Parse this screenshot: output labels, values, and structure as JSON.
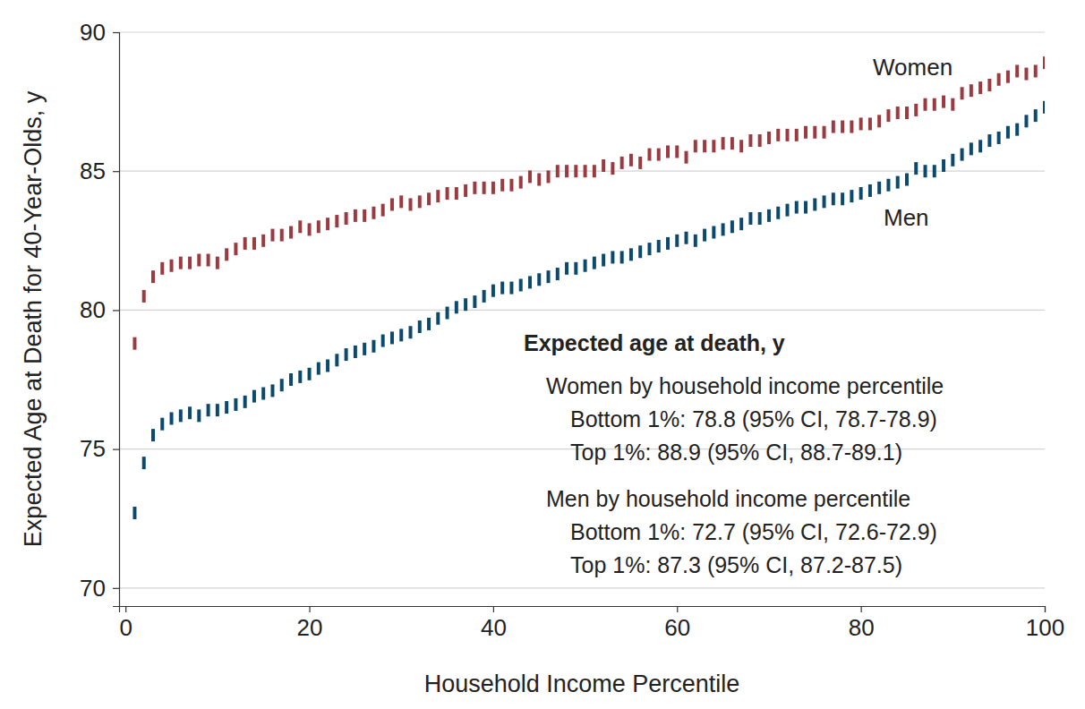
{
  "chart_data": {
    "type": "scatter",
    "x_label": "Household Income Percentile",
    "y_label": "Expected Age at Death for 40-Year-Olds, y",
    "xlim": [
      -0.7,
      100
    ],
    "ylim": [
      69.35,
      90
    ],
    "xticks": [
      0,
      20,
      40,
      60,
      80,
      100
    ],
    "yticks": [
      70,
      75,
      80,
      85,
      90
    ],
    "grid": true,
    "marker": "dash",
    "x": [
      1,
      2,
      3,
      4,
      5,
      6,
      7,
      8,
      9,
      10,
      11,
      12,
      13,
      14,
      15,
      16,
      17,
      18,
      19,
      20,
      21,
      22,
      23,
      24,
      25,
      26,
      27,
      28,
      29,
      30,
      31,
      32,
      33,
      34,
      35,
      36,
      37,
      38,
      39,
      40,
      41,
      42,
      43,
      44,
      45,
      46,
      47,
      48,
      49,
      50,
      51,
      52,
      53,
      54,
      55,
      56,
      57,
      58,
      59,
      60,
      61,
      62,
      63,
      64,
      65,
      66,
      67,
      68,
      69,
      70,
      71,
      72,
      73,
      74,
      75,
      76,
      77,
      78,
      79,
      80,
      81,
      82,
      83,
      84,
      85,
      86,
      87,
      88,
      89,
      90,
      91,
      92,
      93,
      94,
      95,
      96,
      97,
      98,
      99,
      100
    ],
    "series": [
      {
        "name": "Women",
        "color": "#9b3a40",
        "values": [
          78.8,
          80.5,
          81.2,
          81.5,
          81.6,
          81.7,
          81.7,
          81.8,
          81.8,
          81.7,
          82.0,
          82.2,
          82.4,
          82.4,
          82.5,
          82.7,
          82.7,
          82.8,
          83.0,
          82.9,
          83.0,
          83.1,
          83.2,
          83.3,
          83.4,
          83.4,
          83.5,
          83.6,
          83.8,
          83.9,
          83.8,
          83.9,
          84.0,
          84.1,
          84.2,
          84.2,
          84.3,
          84.4,
          84.4,
          84.4,
          84.5,
          84.5,
          84.6,
          84.8,
          84.7,
          84.8,
          85.0,
          85.0,
          85.0,
          85.0,
          85.0,
          85.2,
          85.1,
          85.3,
          85.4,
          85.3,
          85.6,
          85.6,
          85.7,
          85.7,
          85.5,
          85.9,
          85.9,
          85.9,
          86.0,
          86.0,
          85.9,
          86.1,
          86.1,
          86.2,
          86.3,
          86.3,
          86.3,
          86.4,
          86.4,
          86.4,
          86.6,
          86.6,
          86.6,
          86.7,
          86.7,
          86.8,
          87.0,
          87.1,
          87.1,
          87.2,
          87.4,
          87.4,
          87.5,
          87.4,
          87.8,
          87.9,
          88.0,
          88.1,
          88.3,
          88.4,
          88.6,
          88.5,
          88.6,
          88.9
        ]
      },
      {
        "name": "Men",
        "color": "#0b4a6e",
        "values": [
          72.7,
          74.5,
          75.5,
          75.9,
          76.1,
          76.2,
          76.3,
          76.2,
          76.4,
          76.4,
          76.5,
          76.6,
          76.7,
          76.9,
          77.0,
          77.1,
          77.3,
          77.5,
          77.6,
          77.7,
          77.9,
          78.0,
          78.2,
          78.4,
          78.5,
          78.6,
          78.7,
          78.9,
          79.0,
          79.1,
          79.2,
          79.4,
          79.5,
          79.7,
          79.9,
          80.1,
          80.2,
          80.3,
          80.5,
          80.7,
          80.8,
          80.8,
          80.9,
          81.0,
          81.1,
          81.2,
          81.3,
          81.5,
          81.5,
          81.6,
          81.7,
          81.8,
          81.9,
          81.9,
          82.0,
          82.1,
          82.2,
          82.3,
          82.4,
          82.5,
          82.6,
          82.5,
          82.7,
          82.8,
          82.9,
          83.0,
          83.1,
          83.3,
          83.3,
          83.4,
          83.5,
          83.6,
          83.7,
          83.7,
          83.8,
          83.9,
          84.0,
          84.0,
          84.1,
          84.2,
          84.3,
          84.4,
          84.5,
          84.6,
          84.7,
          85.1,
          85.0,
          85.0,
          85.2,
          85.4,
          85.6,
          85.8,
          85.9,
          86.1,
          86.2,
          86.4,
          86.5,
          86.8,
          87.0,
          87.3
        ]
      }
    ],
    "annotations": [
      "Expected age at death, y",
      "Women by household income percentile",
      "Bottom 1%: 78.8 (95% CI, 78.7-78.9)",
      "Top 1%: 88.9 (95% CI, 88.7-89.1)",
      "Men by household income percentile",
      "Bottom 1%: 72.7 (95% CI, 72.6-72.9)",
      "Top 1%: 87.3 (95% CI, 87.2-87.5)"
    ]
  }
}
